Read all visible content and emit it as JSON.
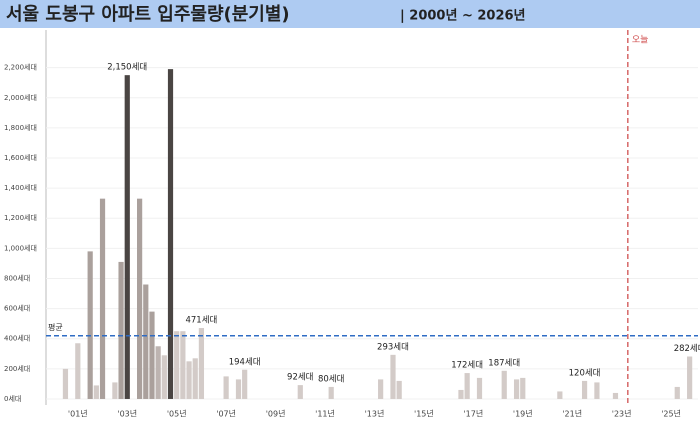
{
  "chart_data": {
    "type": "bar",
    "title": "서울 도봉구 아파트 입주물량(분기별)",
    "subtitle": "| 2000년 ~ 2026년",
    "categories": [
      null,
      null,
      null,
      null,
      "'01년",
      null,
      null,
      null,
      null,
      null,
      null,
      null,
      "'03년",
      null,
      null,
      null,
      null,
      null,
      null,
      null,
      "'05년",
      null,
      null,
      null,
      null,
      null,
      null,
      null,
      "'07년",
      null,
      null,
      null,
      null,
      null,
      null,
      null,
      "'09년",
      null,
      null,
      null,
      null,
      null,
      null,
      null,
      "'11년",
      null,
      null,
      null,
      null,
      null,
      null,
      null,
      "'13년",
      null,
      null,
      null,
      null,
      null,
      null,
      null,
      "'15년",
      null,
      null,
      null,
      null,
      null,
      null,
      null,
      "'17년",
      null,
      null,
      null,
      null,
      null,
      null,
      null,
      "'19년",
      null,
      null,
      null,
      null,
      null,
      null,
      null,
      "'21년",
      null,
      null,
      null,
      null,
      null,
      null,
      null,
      "'23년",
      null,
      null,
      null,
      null,
      null,
      null,
      null,
      "'25년",
      null,
      null,
      null
    ],
    "values": [
      null,
      null,
      200,
      null,
      370,
      null,
      980,
      90,
      1330,
      null,
      110,
      910,
      2150,
      null,
      1330,
      760,
      580,
      350,
      290,
      2190,
      450,
      450,
      250,
      270,
      471,
      null,
      null,
      null,
      150,
      null,
      130,
      194,
      null,
      null,
      null,
      null,
      null,
      null,
      null,
      null,
      92,
      null,
      null,
      null,
      null,
      80,
      null,
      null,
      null,
      null,
      null,
      null,
      null,
      130,
      null,
      293,
      120,
      null,
      null,
      null,
      null,
      null,
      null,
      null,
      null,
      null,
      60,
      172,
      null,
      140,
      null,
      null,
      null,
      187,
      null,
      130,
      140,
      null,
      null,
      null,
      null,
      null,
      50,
      null,
      null,
      null,
      120,
      null,
      110,
      null,
      null,
      40,
      null,
      null,
      null,
      null,
      null,
      null,
      null,
      null,
      null,
      80,
      null,
      282
    ],
    "value_labels": [
      null,
      null,
      null,
      null,
      null,
      null,
      null,
      null,
      null,
      null,
      null,
      null,
      "2,150세대",
      null,
      null,
      null,
      null,
      null,
      null,
      null,
      null,
      null,
      null,
      null,
      "471세대",
      null,
      null,
      null,
      null,
      null,
      null,
      "194세대",
      null,
      null,
      null,
      null,
      null,
      null,
      null,
      null,
      "92세대",
      null,
      null,
      null,
      null,
      "80세대",
      null,
      null,
      null,
      null,
      null,
      null,
      null,
      null,
      null,
      "293세대",
      null,
      null,
      null,
      null,
      null,
      null,
      null,
      null,
      null,
      null,
      null,
      "172세대",
      null,
      null,
      null,
      null,
      null,
      "187세대",
      null,
      null,
      null,
      null,
      null,
      null,
      null,
      null,
      null,
      null,
      null,
      null,
      "120세대",
      null,
      null,
      null,
      null,
      null,
      null,
      null,
      null,
      null,
      null,
      null,
      null,
      null,
      null,
      null,
      null,
      "282세대"
    ],
    "colors": [
      null,
      null,
      "#d3cbc8",
      null,
      "#d3cbc8",
      null,
      "#aaa09c",
      "#d3cbc8",
      "#aaa09c",
      null,
      "#d3cbc8",
      "#aaa09c",
      "#4a4543",
      null,
      "#aaa09c",
      "#aaa09c",
      "#aaa09c",
      "#bdb4b1",
      "#d3cbc8",
      "#4a4543",
      "#d3cbc8",
      "#d3cbc8",
      "#d3cbc8",
      "#d3cbc8",
      "#d3cbc8",
      null,
      null,
      null,
      "#d3cbc8",
      null,
      "#d3cbc8",
      "#d3cbc8",
      null,
      null,
      null,
      null,
      null,
      null,
      null,
      null,
      "#d3cbc8",
      null,
      null,
      null,
      null,
      "#d3cbc8",
      null,
      null,
      null,
      null,
      null,
      null,
      null,
      "#d3cbc8",
      null,
      "#d3cbc8",
      "#d3cbc8",
      null,
      null,
      null,
      null,
      null,
      null,
      null,
      null,
      null,
      "#d3cbc8",
      "#d3cbc8",
      null,
      "#d3cbc8",
      null,
      null,
      null,
      "#d3cbc8",
      null,
      "#d3cbc8",
      "#d3cbc8",
      null,
      null,
      null,
      null,
      null,
      "#d3cbc8",
      null,
      null,
      null,
      "#d3cbc8",
      null,
      "#d3cbc8",
      null,
      null,
      "#d3cbc8",
      null,
      null,
      null,
      null,
      null,
      null,
      null,
      null,
      null,
      "#d3cbc8",
      null,
      "#d3cbc8"
    ],
    "ylim": [
      -40,
      2410
    ],
    "yticks": [
      {
        "value": 0,
        "label": "0세대"
      },
      {
        "value": 200,
        "label": "200세대"
      },
      {
        "value": 400,
        "label": "400세대"
      },
      {
        "value": 600,
        "label": "600세대"
      },
      {
        "value": 800,
        "label": "800세대"
      },
      {
        "value": 1000,
        "label": "1,000세대"
      },
      {
        "value": 1200,
        "label": "1,200세대"
      },
      {
        "value": 1400,
        "label": "1,400세대"
      },
      {
        "value": 1600,
        "label": "1,600세대"
      },
      {
        "value": 1800,
        "label": "1,800세대"
      },
      {
        "value": 2000,
        "label": "2,000세대"
      },
      {
        "value": 2200,
        "label": "2,200세대"
      }
    ],
    "grid": true,
    "average": {
      "label": "평균",
      "value": 420,
      "color": "#2f6cc4"
    },
    "today": {
      "label": "오늘",
      "category": 93,
      "color": "#d05050"
    }
  }
}
